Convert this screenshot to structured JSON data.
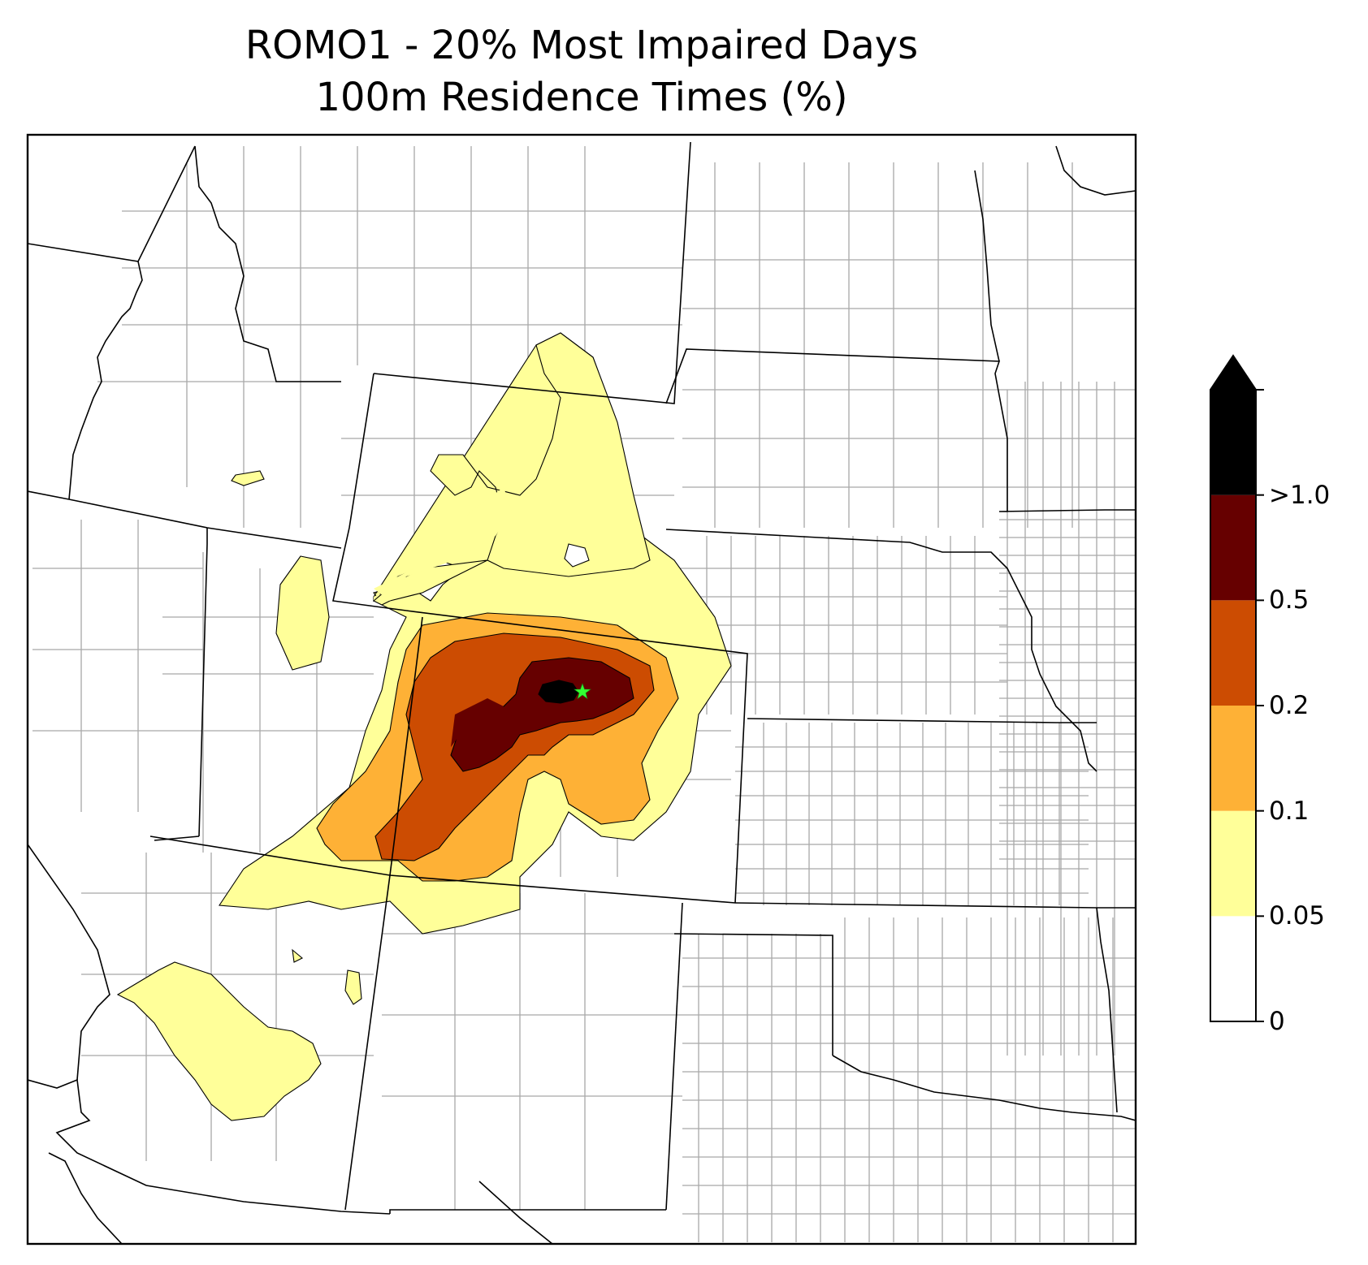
{
  "figure": {
    "title_line1": "ROMO1 - 20% Most Impaired Days",
    "title_line2": "100m Residence Times (%)"
  },
  "colorbar": {
    "levels": [
      {
        "label": "0",
        "value": 0,
        "color": "#ffffff"
      },
      {
        "label": "0.05",
        "value": 0.05,
        "color": "#ffff99"
      },
      {
        "label": "0.1",
        "value": 0.1,
        "color": "#feb136"
      },
      {
        "label": "0.2",
        "value": 0.2,
        "color": "#cc4c02"
      },
      {
        "label": "0.5",
        "value": 0.5,
        "color": "#660000"
      },
      {
        "label": ">1.0",
        "value": 1.0,
        "color": "#000000"
      }
    ],
    "extend": "max",
    "position": "right"
  },
  "map": {
    "receptor_site": "ROMO1",
    "receptor_marker": "star",
    "receptor_color": "#33ff33",
    "state_border_color": "#000000",
    "county_border_color": "#a8a8a8"
  }
}
